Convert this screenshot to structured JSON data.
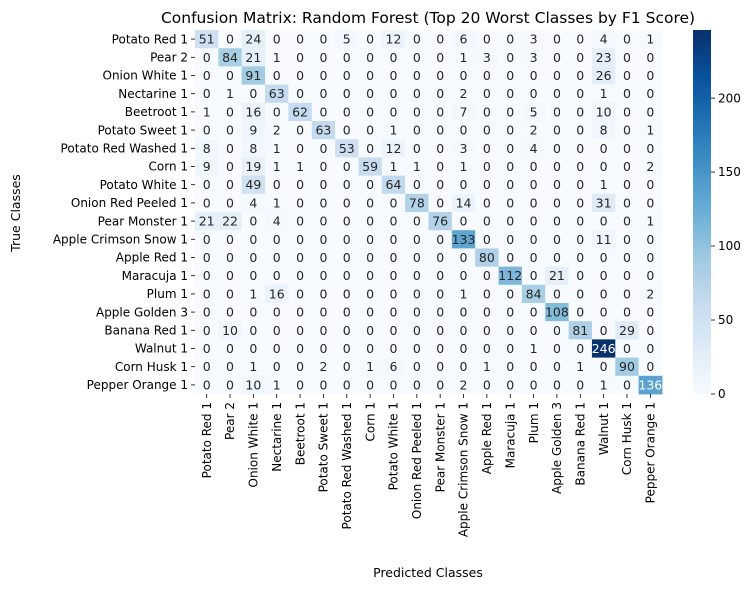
{
  "chart_data": {
    "type": "heatmap",
    "title": "Confusion Matrix: Random Forest (Top 20 Worst Classes by F1 Score)",
    "xlabel": "Predicted Classes",
    "ylabel": "True Classes",
    "classes": [
      "Potato Red 1",
      "Pear 2",
      "Onion White 1",
      "Nectarine 1",
      "Beetroot 1",
      "Potato Sweet 1",
      "Potato Red Washed 1",
      "Corn 1",
      "Potato White 1",
      "Onion Red Peeled 1",
      "Pear Monster 1",
      "Apple Crimson Snow 1",
      "Apple Red 1",
      "Maracuja 1",
      "Plum 1",
      "Apple Golden 3",
      "Banana Red 1",
      "Walnut 1",
      "Corn Husk 1",
      "Pepper Orange 1"
    ],
    "matrix": [
      [
        51,
        0,
        24,
        0,
        0,
        0,
        5,
        0,
        12,
        0,
        0,
        6,
        0,
        0,
        3,
        0,
        0,
        4,
        0,
        1
      ],
      [
        0,
        84,
        21,
        1,
        0,
        0,
        0,
        0,
        0,
        0,
        0,
        1,
        3,
        0,
        3,
        0,
        0,
        23,
        0,
        0
      ],
      [
        0,
        0,
        91,
        0,
        0,
        0,
        0,
        0,
        0,
        0,
        0,
        0,
        0,
        0,
        0,
        0,
        0,
        26,
        0,
        0
      ],
      [
        0,
        1,
        0,
        63,
        0,
        0,
        0,
        0,
        0,
        0,
        0,
        2,
        0,
        0,
        0,
        0,
        0,
        1,
        0,
        0
      ],
      [
        1,
        0,
        16,
        0,
        62,
        0,
        0,
        0,
        0,
        0,
        0,
        7,
        0,
        0,
        5,
        0,
        0,
        10,
        0,
        0
      ],
      [
        0,
        0,
        9,
        2,
        0,
        63,
        0,
        0,
        1,
        0,
        0,
        0,
        0,
        0,
        2,
        0,
        0,
        8,
        0,
        1
      ],
      [
        8,
        0,
        8,
        1,
        0,
        0,
        53,
        0,
        12,
        0,
        0,
        3,
        0,
        0,
        4,
        0,
        0,
        0,
        0,
        0
      ],
      [
        9,
        0,
        19,
        1,
        1,
        0,
        0,
        59,
        1,
        1,
        0,
        1,
        0,
        0,
        0,
        0,
        0,
        0,
        0,
        2
      ],
      [
        0,
        0,
        49,
        0,
        0,
        0,
        0,
        0,
        64,
        0,
        0,
        0,
        0,
        0,
        0,
        0,
        0,
        1,
        0,
        0
      ],
      [
        0,
        0,
        4,
        1,
        0,
        0,
        0,
        0,
        0,
        78,
        0,
        14,
        0,
        0,
        0,
        0,
        0,
        31,
        0,
        0
      ],
      [
        21,
        22,
        0,
        4,
        0,
        0,
        0,
        0,
        0,
        0,
        76,
        0,
        0,
        0,
        0,
        0,
        0,
        0,
        0,
        1
      ],
      [
        0,
        0,
        0,
        0,
        0,
        0,
        0,
        0,
        0,
        0,
        0,
        133,
        0,
        0,
        0,
        0,
        0,
        11,
        0,
        0
      ],
      [
        0,
        0,
        0,
        0,
        0,
        0,
        0,
        0,
        0,
        0,
        0,
        0,
        80,
        0,
        0,
        0,
        0,
        0,
        0,
        0
      ],
      [
        0,
        0,
        0,
        0,
        0,
        0,
        0,
        0,
        0,
        0,
        0,
        0,
        0,
        112,
        0,
        21,
        0,
        0,
        0,
        0
      ],
      [
        0,
        0,
        1,
        16,
        0,
        0,
        0,
        0,
        0,
        0,
        0,
        1,
        0,
        0,
        84,
        0,
        0,
        0,
        0,
        2
      ],
      [
        0,
        0,
        0,
        0,
        0,
        0,
        0,
        0,
        0,
        0,
        0,
        0,
        0,
        0,
        0,
        108,
        0,
        0,
        0,
        0
      ],
      [
        0,
        10,
        0,
        0,
        0,
        0,
        0,
        0,
        0,
        0,
        0,
        0,
        0,
        0,
        0,
        0,
        81,
        0,
        29,
        0
      ],
      [
        0,
        0,
        0,
        0,
        0,
        0,
        0,
        0,
        0,
        0,
        0,
        0,
        0,
        0,
        1,
        0,
        0,
        246,
        0,
        0
      ],
      [
        0,
        0,
        1,
        0,
        0,
        2,
        0,
        1,
        6,
        0,
        0,
        0,
        1,
        0,
        0,
        0,
        1,
        0,
        90,
        0
      ],
      [
        0,
        0,
        10,
        1,
        0,
        0,
        0,
        0,
        0,
        0,
        0,
        2,
        0,
        0,
        0,
        0,
        0,
        1,
        0,
        136
      ]
    ],
    "color_range": [
      0,
      246
    ],
    "colorbar_ticks": [
      0,
      50,
      100,
      150,
      200
    ],
    "colormap": "Blues",
    "grid": false,
    "legend": "colorbar-right"
  }
}
